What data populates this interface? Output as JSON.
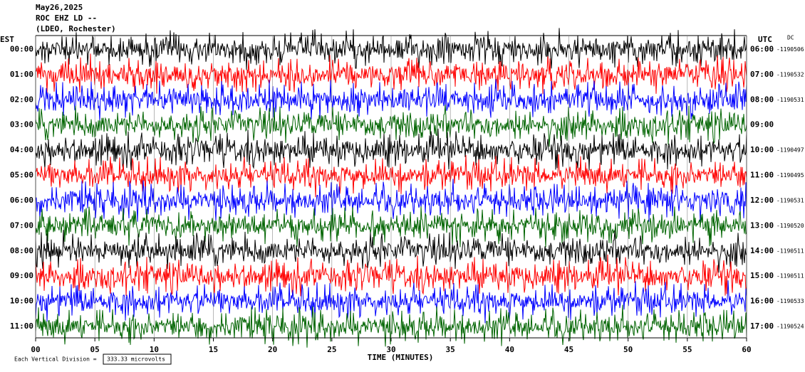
{
  "chart_data": {
    "type": "helicorder",
    "title_lines": [
      "May26,2025",
      "ROC EHZ LD --",
      "(LDEO, Rochester)"
    ],
    "left_axis_label": "EST",
    "right_axis_label": "UTC",
    "dc_label": "DC",
    "rows": [
      {
        "est": "00:00",
        "utc": "06:00",
        "dc": "-1190506"
      },
      {
        "est": "01:00",
        "utc": "07:00",
        "dc": "-1190532"
      },
      {
        "est": "02:00",
        "utc": "08:00",
        "dc": "-1190531"
      },
      {
        "est": "03:00",
        "utc": "09:00",
        "dc": null
      },
      {
        "est": "04:00",
        "utc": "10:00",
        "dc": "-1190497"
      },
      {
        "est": "05:00",
        "utc": "11:00",
        "dc": "-1190495"
      },
      {
        "est": "06:00",
        "utc": "12:00",
        "dc": "-1190531"
      },
      {
        "est": "07:00",
        "utc": "13:00",
        "dc": "-1190520"
      },
      {
        "est": "08:00",
        "utc": "14:00",
        "dc": "-1190511"
      },
      {
        "est": "09:00",
        "utc": "15:00",
        "dc": "-1190511"
      },
      {
        "est": "10:00",
        "utc": "16:00",
        "dc": "-1190533"
      },
      {
        "est": "11:00",
        "utc": "17:00",
        "dc": "-1190524"
      }
    ],
    "trace_colors": [
      "#000000",
      "#ff0000",
      "#0000ff",
      "#006400"
    ],
    "xlabel": "TIME (MINUTES)",
    "xlim": [
      0,
      60
    ],
    "xticks": [
      {
        "value": 0,
        "label": "00"
      },
      {
        "value": 5,
        "label": "05"
      },
      10,
      15,
      20,
      25,
      30,
      35,
      40,
      45,
      50,
      55,
      60
    ],
    "scale_note": "Each Vertical Division =",
    "scale_value": "333.33 microvolts"
  }
}
